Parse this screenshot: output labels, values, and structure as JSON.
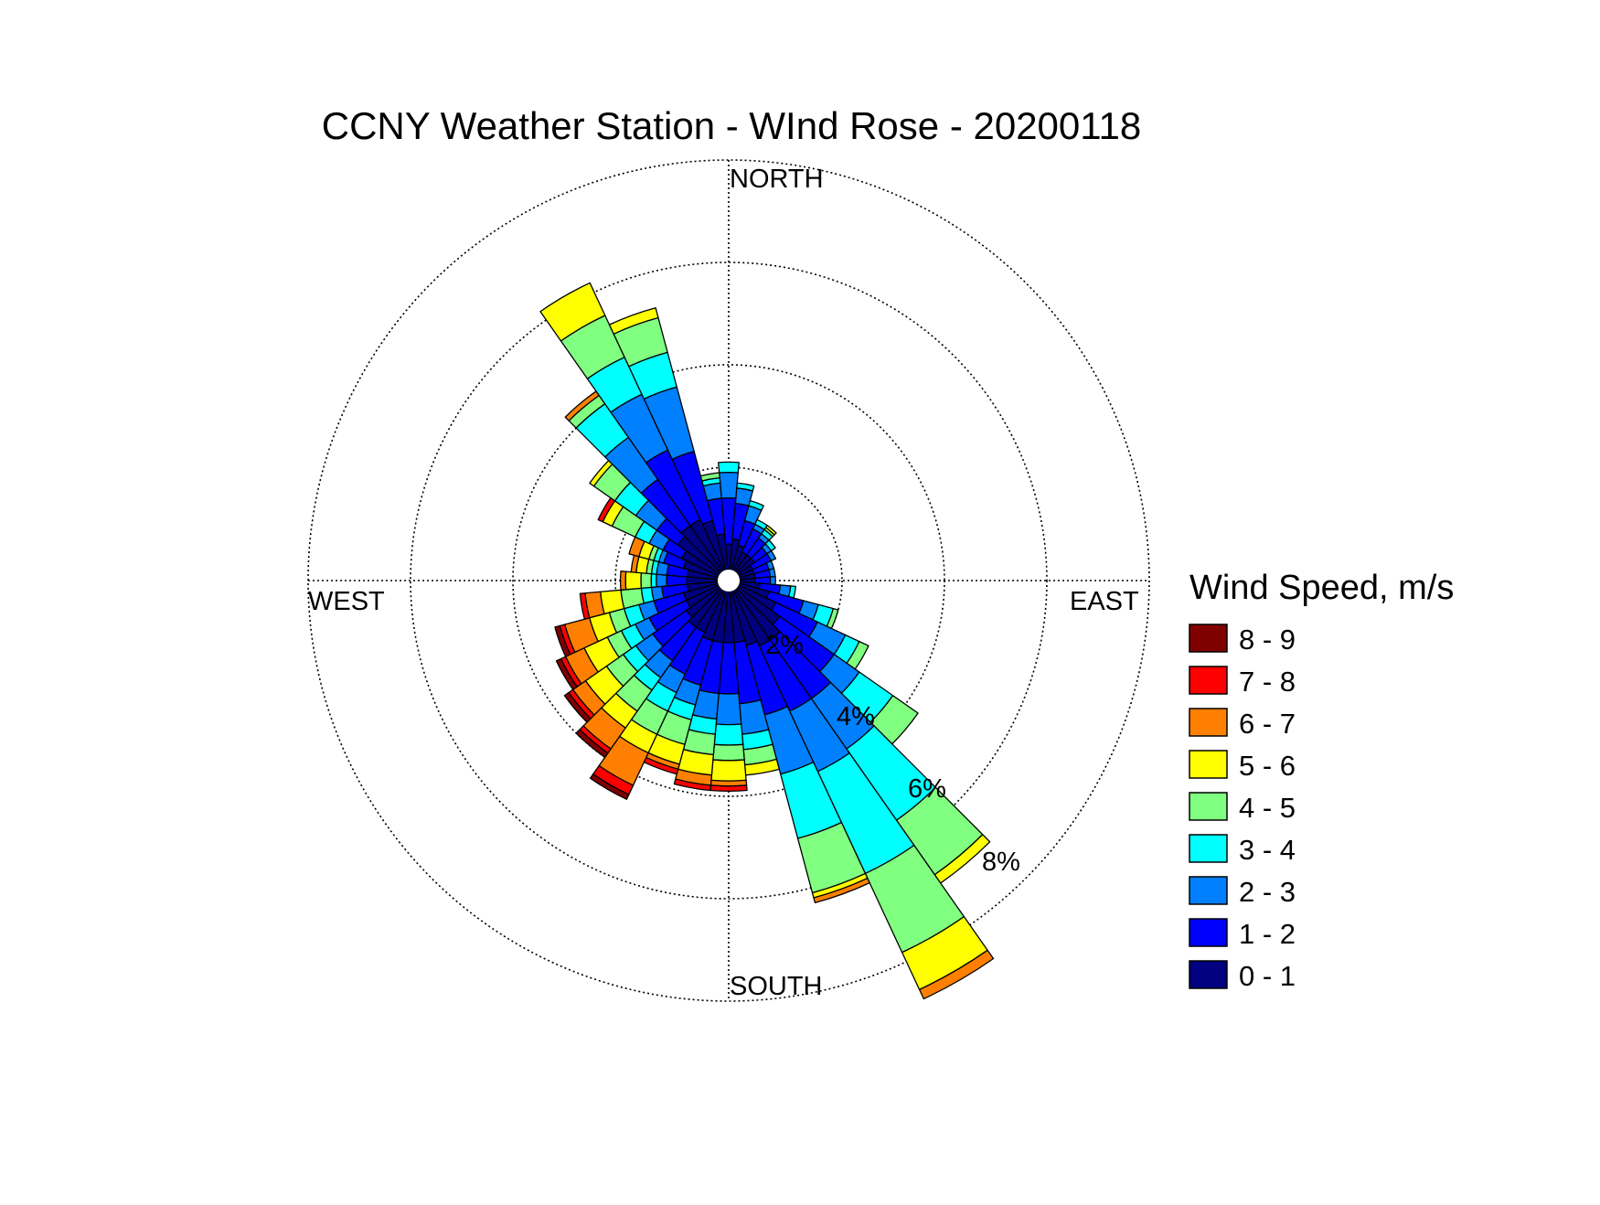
{
  "chart_data": {
    "type": "windrose",
    "title": "CCNY Weather Station - WInd Rose - 20200118",
    "direction_labels": {
      "north": "NORTH",
      "east": "EAST",
      "south": "SOUTH",
      "west": "WEST"
    },
    "radial_unit": "%",
    "radial_ticks": [
      2,
      4,
      6,
      8
    ],
    "radial_tick_labels": [
      "2%",
      "4%",
      "6%",
      "8%"
    ],
    "radial_max": 8,
    "legend": {
      "title": "Wind Speed, m/s",
      "placement": "right",
      "bins": [
        {
          "label": "8 - 9",
          "color": "#800000"
        },
        {
          "label": "7 - 8",
          "color": "#ff0000"
        },
        {
          "label": "6 - 7",
          "color": "#ff8000"
        },
        {
          "label": "5 - 6",
          "color": "#ffff00"
        },
        {
          "label": "4 - 5",
          "color": "#80ff80"
        },
        {
          "label": "3 - 4",
          "color": "#00ffff"
        },
        {
          "label": "2 - 3",
          "color": "#0080ff"
        },
        {
          "label": "1 - 2",
          "color": "#0000ff"
        },
        {
          "label": "0 - 1",
          "color": "#000080"
        }
      ]
    },
    "speed_bins": [
      "0 - 1",
      "1 - 2",
      "2 - 3",
      "3 - 4",
      "4 - 5",
      "5 - 6",
      "6 - 7",
      "7 - 8",
      "8 - 9"
    ],
    "sector_width_deg": 10,
    "directions_deg": [
      0,
      10,
      20,
      30,
      40,
      50,
      60,
      70,
      80,
      90,
      100,
      110,
      120,
      130,
      140,
      150,
      160,
      170,
      180,
      190,
      200,
      210,
      220,
      230,
      240,
      250,
      260,
      270,
      280,
      290,
      300,
      310,
      320,
      330,
      340,
      350
    ],
    "frequencies_cumulative_percent": [
      [
        0.5,
        1.4,
        1.9,
        2.1,
        2.1,
        2.1,
        2.1,
        2.1,
        2.1
      ],
      [
        0.6,
        1.3,
        1.6,
        1.7,
        1.7,
        1.7,
        1.7,
        1.7,
        1.7
      ],
      [
        0.5,
        1.0,
        1.3,
        1.4,
        1.4,
        1.4,
        1.4,
        1.4,
        1.4
      ],
      [
        0.4,
        0.9,
        1.0,
        1.1,
        1.1,
        1.1,
        1.1,
        1.1,
        1.1
      ],
      [
        0.4,
        0.8,
        0.9,
        1.0,
        1.05,
        1.1,
        1.1,
        1.1,
        1.1
      ],
      [
        0.4,
        0.7,
        0.8,
        0.9,
        0.9,
        0.9,
        0.9,
        0.9,
        0.9
      ],
      [
        0.3,
        0.7,
        0.8,
        0.8,
        0.8,
        0.8,
        0.8,
        0.8,
        0.8
      ],
      [
        0.3,
        0.6,
        0.7,
        0.7,
        0.7,
        0.7,
        0.7,
        0.7,
        0.7
      ],
      [
        0.3,
        0.6,
        0.7,
        0.7,
        0.7,
        0.7,
        0.7,
        0.7,
        0.7
      ],
      [
        0.3,
        0.6,
        0.7,
        0.7,
        0.7,
        0.7,
        0.7,
        0.7,
        0.7
      ],
      [
        0.4,
        0.8,
        1.0,
        1.1,
        1.1,
        1.1,
        1.1,
        1.1,
        1.1
      ],
      [
        0.6,
        1.3,
        1.6,
        1.9,
        2.0,
        2.0,
        2.0,
        2.0,
        2.0
      ],
      [
        0.8,
        1.7,
        2.3,
        2.6,
        2.8,
        2.8,
        2.8,
        2.8,
        2.8
      ],
      [
        1.0,
        2.3,
        2.9,
        3.7,
        4.3,
        4.3,
        4.3,
        4.3,
        4.3
      ],
      [
        1.2,
        2.6,
        3.8,
        5.5,
        6.8,
        7.0,
        7.0,
        7.0,
        7.0
      ],
      [
        1.2,
        2.6,
        3.9,
        6.1,
        7.8,
        8.6,
        8.8,
        8.8,
        8.8
      ],
      [
        1.1,
        2.5,
        3.7,
        5.0,
        6.1,
        6.2,
        6.3,
        6.3,
        6.3
      ],
      [
        1.0,
        2.2,
        2.8,
        3.1,
        3.4,
        3.6,
        3.6,
        3.6,
        3.6
      ],
      [
        1.0,
        2.0,
        2.6,
        3.0,
        3.3,
        3.7,
        3.8,
        3.9,
        3.9
      ],
      [
        1.0,
        2.0,
        2.5,
        2.8,
        3.2,
        3.6,
        3.8,
        3.9,
        3.9
      ],
      [
        1.0,
        1.9,
        2.3,
        2.6,
        3.1,
        3.5,
        3.6,
        3.7,
        3.7
      ],
      [
        0.9,
        1.8,
        2.2,
        2.6,
        3.1,
        3.5,
        4.2,
        4.4,
        4.5
      ],
      [
        0.9,
        1.7,
        2.1,
        2.4,
        2.9,
        3.3,
        3.8,
        3.9,
        4.0
      ],
      [
        0.8,
        1.6,
        2.0,
        2.3,
        2.7,
        3.2,
        3.5,
        3.6,
        3.7
      ],
      [
        0.7,
        1.5,
        1.8,
        2.1,
        2.4,
        2.9,
        3.3,
        3.4,
        3.5
      ],
      [
        0.7,
        1.3,
        1.6,
        1.9,
        2.2,
        2.6,
        3.1,
        3.2,
        3.3
      ],
      [
        0.6,
        1.1,
        1.3,
        1.5,
        1.9,
        2.3,
        2.6,
        2.7,
        2.7
      ],
      [
        0.6,
        1.0,
        1.2,
        1.3,
        1.5,
        1.8,
        1.9,
        1.9,
        1.9
      ],
      [
        0.6,
        1.0,
        1.2,
        1.3,
        1.4,
        1.6,
        1.7,
        1.7,
        1.7
      ],
      [
        0.7,
        1.1,
        1.2,
        1.3,
        1.4,
        1.6,
        1.8,
        1.8,
        1.8
      ],
      [
        0.8,
        1.2,
        1.5,
        1.8,
        2.3,
        2.5,
        2.5,
        2.6,
        2.6
      ],
      [
        1.0,
        1.5,
        2.0,
        2.5,
        3.0,
        3.1,
        3.1,
        3.1,
        3.1
      ],
      [
        1.1,
        2.2,
        3.2,
        4.0,
        4.2,
        4.2,
        4.3,
        4.3,
        4.3
      ],
      [
        1.1,
        2.6,
        3.8,
        4.6,
        5.5,
        6.2,
        6.2,
        6.2,
        6.2
      ],
      [
        1.0,
        2.4,
        3.7,
        4.4,
        5.1,
        5.3,
        5.3,
        5.3,
        5.3
      ],
      [
        0.7,
        1.4,
        1.7,
        1.8,
        1.9,
        1.9,
        1.9,
        1.9,
        1.9
      ]
    ]
  }
}
